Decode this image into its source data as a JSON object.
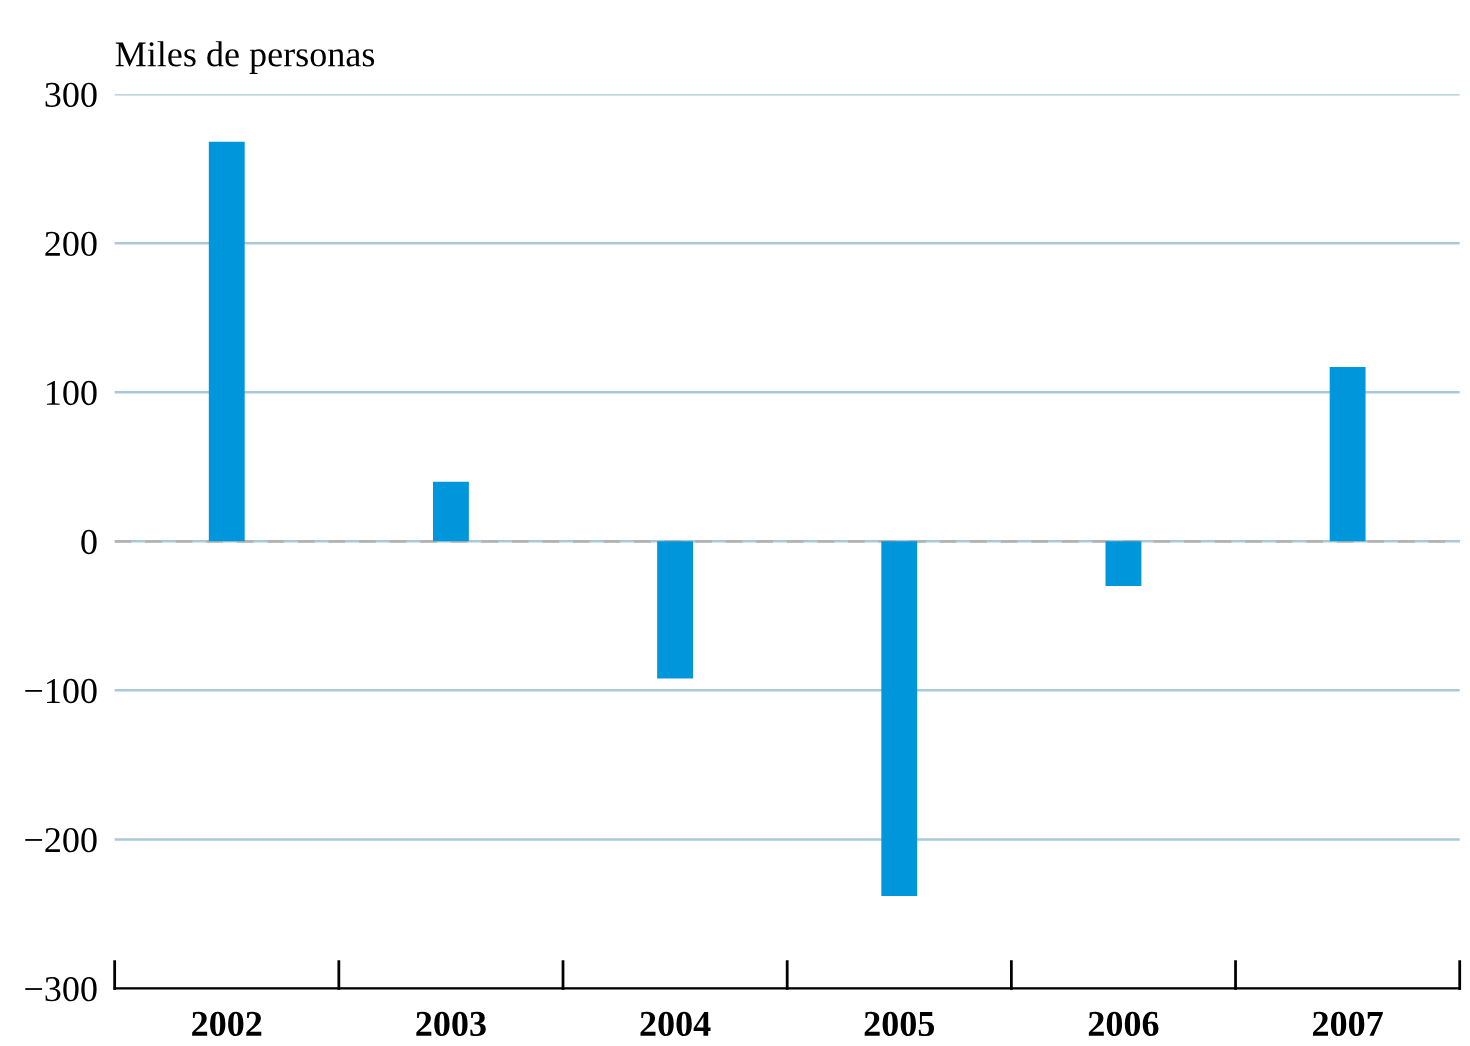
{
  "chart_data": {
    "type": "bar",
    "ylabel": "Miles de personas",
    "categories": [
      "2002",
      "2003",
      "2004",
      "2005",
      "2006",
      "2007"
    ],
    "values": [
      268,
      40,
      -92,
      -238,
      -30,
      117
    ],
    "color": "#0096db",
    "ylim": [
      -300,
      300
    ],
    "yticks": [
      {
        "value": -300,
        "label": "−300"
      },
      {
        "value": -200,
        "label": "−200"
      },
      {
        "value": -100,
        "label": "−100"
      },
      0,
      100,
      200,
      300
    ],
    "grid": "y",
    "ref_lines": [
      {
        "axis": "y",
        "value": 0,
        "color": "#b3b3b3",
        "line_style": "dashed"
      }
    ]
  }
}
